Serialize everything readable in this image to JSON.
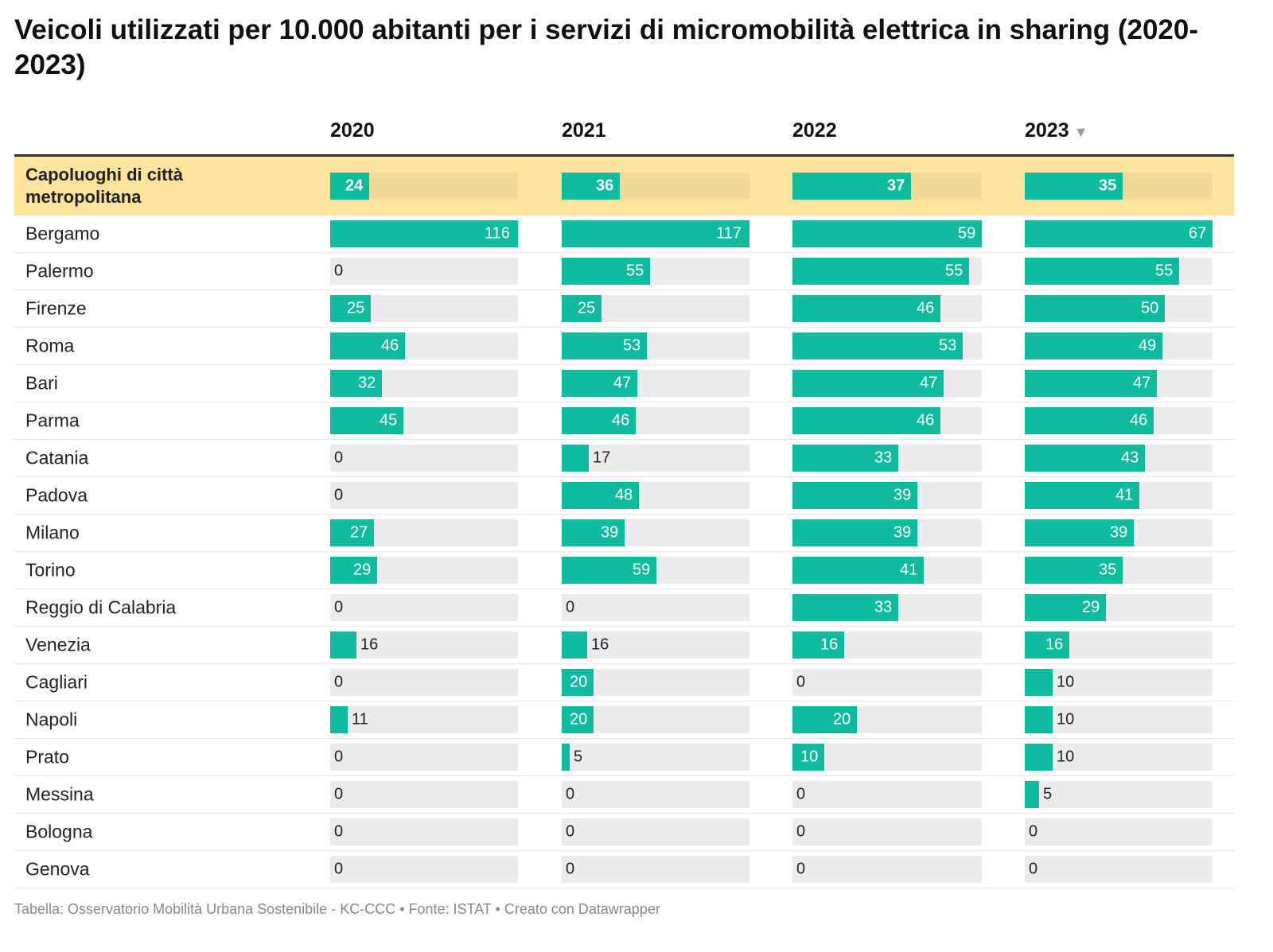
{
  "title": "Veicoli utilizzati per 10.000 abitanti per i servizi di micromobilità elettrica in sharing (2020-2023)",
  "footer": "Tabella: Osservatorio Mobilità Urbana Sostenibile - KC-CCC • Fonte: ISTAT • Creato con Datawrapper",
  "colors": {
    "bar": "#0ebb9e",
    "track": "#ebebeb",
    "highlight_bg": "#fde49c",
    "highlight_track": "#f0d898"
  },
  "chart_data": {
    "type": "table",
    "title": "Veicoli utilizzati per 10.000 abitanti per i servizi di micromobilità elettrica in sharing (2020-2023)",
    "columns": [
      "2020",
      "2021",
      "2022",
      "2023"
    ],
    "sorted_column": "2023",
    "sort_icon": "sort-desc-icon",
    "column_max": [
      116,
      117,
      59,
      67
    ],
    "rows": [
      {
        "label": "Capoluoghi di città metropolitana",
        "values": [
          24,
          36,
          37,
          35
        ],
        "highlight": true
      },
      {
        "label": "Bergamo",
        "values": [
          116,
          117,
          59,
          67
        ]
      },
      {
        "label": "Palermo",
        "values": [
          0,
          55,
          55,
          55
        ]
      },
      {
        "label": "Firenze",
        "values": [
          25,
          25,
          46,
          50
        ]
      },
      {
        "label": "Roma",
        "values": [
          46,
          53,
          53,
          49
        ]
      },
      {
        "label": "Bari",
        "values": [
          32,
          47,
          47,
          47
        ]
      },
      {
        "label": "Parma",
        "values": [
          45,
          46,
          46,
          46
        ]
      },
      {
        "label": "Catania",
        "values": [
          0,
          17,
          33,
          43
        ]
      },
      {
        "label": "Padova",
        "values": [
          0,
          48,
          39,
          41
        ]
      },
      {
        "label": "Milano",
        "values": [
          27,
          39,
          39,
          39
        ]
      },
      {
        "label": "Torino",
        "values": [
          29,
          59,
          41,
          35
        ]
      },
      {
        "label": "Reggio di Calabria",
        "values": [
          0,
          0,
          33,
          29
        ]
      },
      {
        "label": "Venezia",
        "values": [
          16,
          16,
          16,
          16
        ]
      },
      {
        "label": "Cagliari",
        "values": [
          0,
          20,
          0,
          10
        ]
      },
      {
        "label": "Napoli",
        "values": [
          11,
          20,
          20,
          10
        ]
      },
      {
        "label": "Prato",
        "values": [
          0,
          5,
          10,
          10
        ]
      },
      {
        "label": "Messina",
        "values": [
          0,
          0,
          0,
          5
        ]
      },
      {
        "label": "Bologna",
        "values": [
          0,
          0,
          0,
          0
        ]
      },
      {
        "label": "Genova",
        "values": [
          0,
          0,
          0,
          0
        ]
      }
    ]
  }
}
